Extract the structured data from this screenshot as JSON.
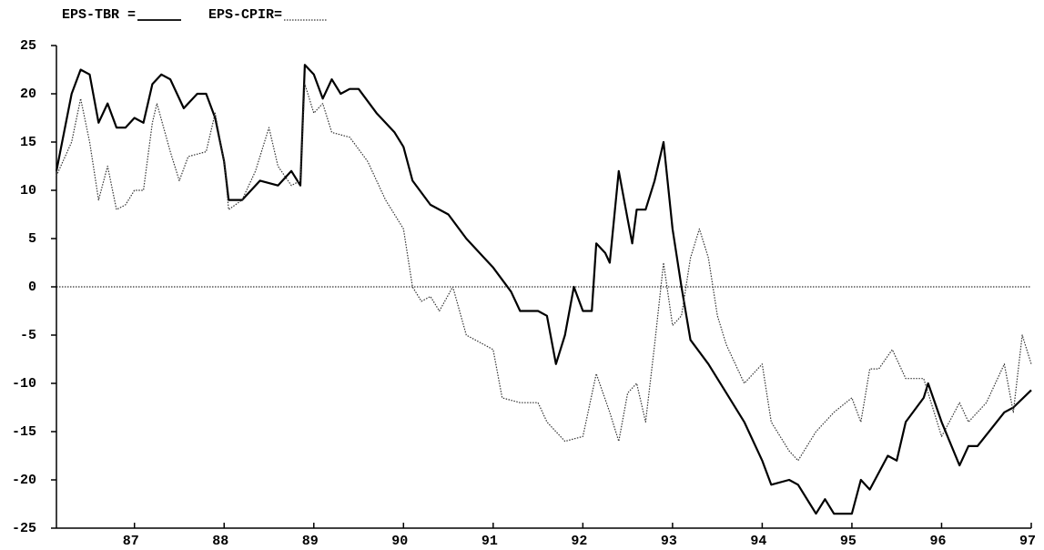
{
  "chart_data": {
    "type": "line",
    "xlim": [
      86.13,
      97
    ],
    "xticks": [
      87,
      88,
      89,
      90,
      91,
      92,
      93,
      94,
      95,
      96,
      97
    ],
    "ylim": [
      -25,
      25
    ],
    "yticks": [
      25,
      20,
      15,
      10,
      5,
      0,
      -5,
      -10,
      -15,
      -20,
      -25
    ],
    "zero_line": true,
    "series": [
      {
        "name": "EPS-TBR =",
        "color": "#000000",
        "style": "solid",
        "x": [
          86.13,
          86.3,
          86.4,
          86.5,
          86.6,
          86.7,
          86.8,
          86.9,
          87.0,
          87.1,
          87.2,
          87.3,
          87.4,
          87.55,
          87.7,
          87.8,
          87.9,
          88.0,
          88.05,
          88.2,
          88.4,
          88.6,
          88.75,
          88.85,
          88.9,
          89.0,
          89.1,
          89.2,
          89.3,
          89.4,
          89.5,
          89.7,
          89.9,
          90.0,
          90.1,
          90.3,
          90.5,
          90.7,
          90.9,
          91.0,
          91.2,
          91.3,
          91.5,
          91.6,
          91.7,
          91.8,
          91.9,
          92.0,
          92.1,
          92.15,
          92.25,
          92.3,
          92.4,
          92.5,
          92.55,
          92.6,
          92.7,
          92.8,
          92.9,
          93.0,
          93.1,
          93.2,
          93.4,
          93.6,
          93.8,
          94.0,
          94.1,
          94.3,
          94.4,
          94.6,
          94.7,
          94.8,
          95.0,
          95.1,
          95.2,
          95.4,
          95.5,
          95.6,
          95.8,
          95.85,
          96.0,
          96.2,
          96.3,
          96.4,
          96.7,
          96.8,
          97.0
        ],
        "values": [
          12,
          20,
          22.5,
          22,
          17,
          19,
          16.5,
          16.5,
          17.5,
          17,
          21,
          22,
          21.5,
          18.5,
          20,
          20,
          17.5,
          13,
          9,
          9,
          11,
          10.5,
          12,
          10.5,
          23,
          22,
          19.5,
          21.5,
          20,
          20.5,
          20.5,
          18,
          16,
          14.5,
          11,
          8.5,
          7.5,
          5,
          3,
          2,
          -0.5,
          -2.5,
          -2.5,
          -3,
          -8,
          -5,
          0,
          -2.5,
          -2.5,
          4.5,
          3.5,
          2.5,
          12,
          7,
          4.5,
          8,
          8,
          11,
          15,
          6,
          0,
          -5.5,
          -8,
          -11,
          -14,
          -18,
          -20.5,
          -20,
          -20.5,
          -23.5,
          -22,
          -23.5,
          -23.5,
          -20,
          -21,
          -17.5,
          -18,
          -14,
          -11.5,
          -10,
          -14,
          -18.5,
          -16.5,
          -16.5,
          -13,
          -12.5,
          -10.7
        ]
      },
      {
        "name": "EPS-CPIR=",
        "color": "#333333",
        "style": "dotted",
        "x": [
          86.13,
          86.3,
          86.4,
          86.5,
          86.6,
          86.7,
          86.8,
          86.9,
          87.0,
          87.1,
          87.2,
          87.25,
          87.4,
          87.5,
          87.6,
          87.8,
          87.9,
          88.0,
          88.05,
          88.2,
          88.35,
          88.5,
          88.6,
          88.75,
          88.85,
          88.9,
          89.0,
          89.1,
          89.2,
          89.4,
          89.6,
          89.8,
          90.0,
          90.1,
          90.2,
          90.3,
          90.4,
          90.55,
          90.7,
          90.9,
          91.0,
          91.1,
          91.3,
          91.5,
          91.6,
          91.8,
          92.0,
          92.15,
          92.3,
          92.4,
          92.5,
          92.6,
          92.7,
          92.8,
          92.9,
          93.0,
          93.1,
          93.2,
          93.3,
          93.4,
          93.5,
          93.6,
          93.8,
          94.0,
          94.1,
          94.3,
          94.4,
          94.6,
          94.8,
          95.0,
          95.1,
          95.2,
          95.3,
          95.45,
          95.6,
          95.8,
          96.0,
          96.2,
          96.3,
          96.5,
          96.7,
          96.8,
          96.9,
          97.0
        ],
        "values": [
          11.5,
          15,
          19.5,
          15,
          9,
          12.5,
          8,
          8.5,
          10,
          10,
          17,
          19,
          14,
          11,
          13.5,
          14,
          18,
          13,
          8,
          9,
          12,
          16.5,
          12.5,
          10.5,
          11,
          21,
          18,
          19,
          16,
          15.5,
          13,
          9,
          6,
          0,
          -1.5,
          -1,
          -2.5,
          0,
          -5,
          -6,
          -6.5,
          -11.5,
          -12,
          -12,
          -14,
          -16,
          -15.5,
          -9,
          -13,
          -16,
          -11,
          -10,
          -14,
          -6,
          2.5,
          -4,
          -3,
          3,
          6,
          3,
          -3,
          -6,
          -10,
          -8,
          -14,
          -17,
          -18,
          -15,
          -13,
          -11.5,
          -14,
          -8.5,
          -8.5,
          -6.5,
          -9.5,
          -9.5,
          -15.5,
          -12,
          -14,
          -12,
          -8,
          -13,
          -5,
          -8
        ]
      }
    ]
  }
}
